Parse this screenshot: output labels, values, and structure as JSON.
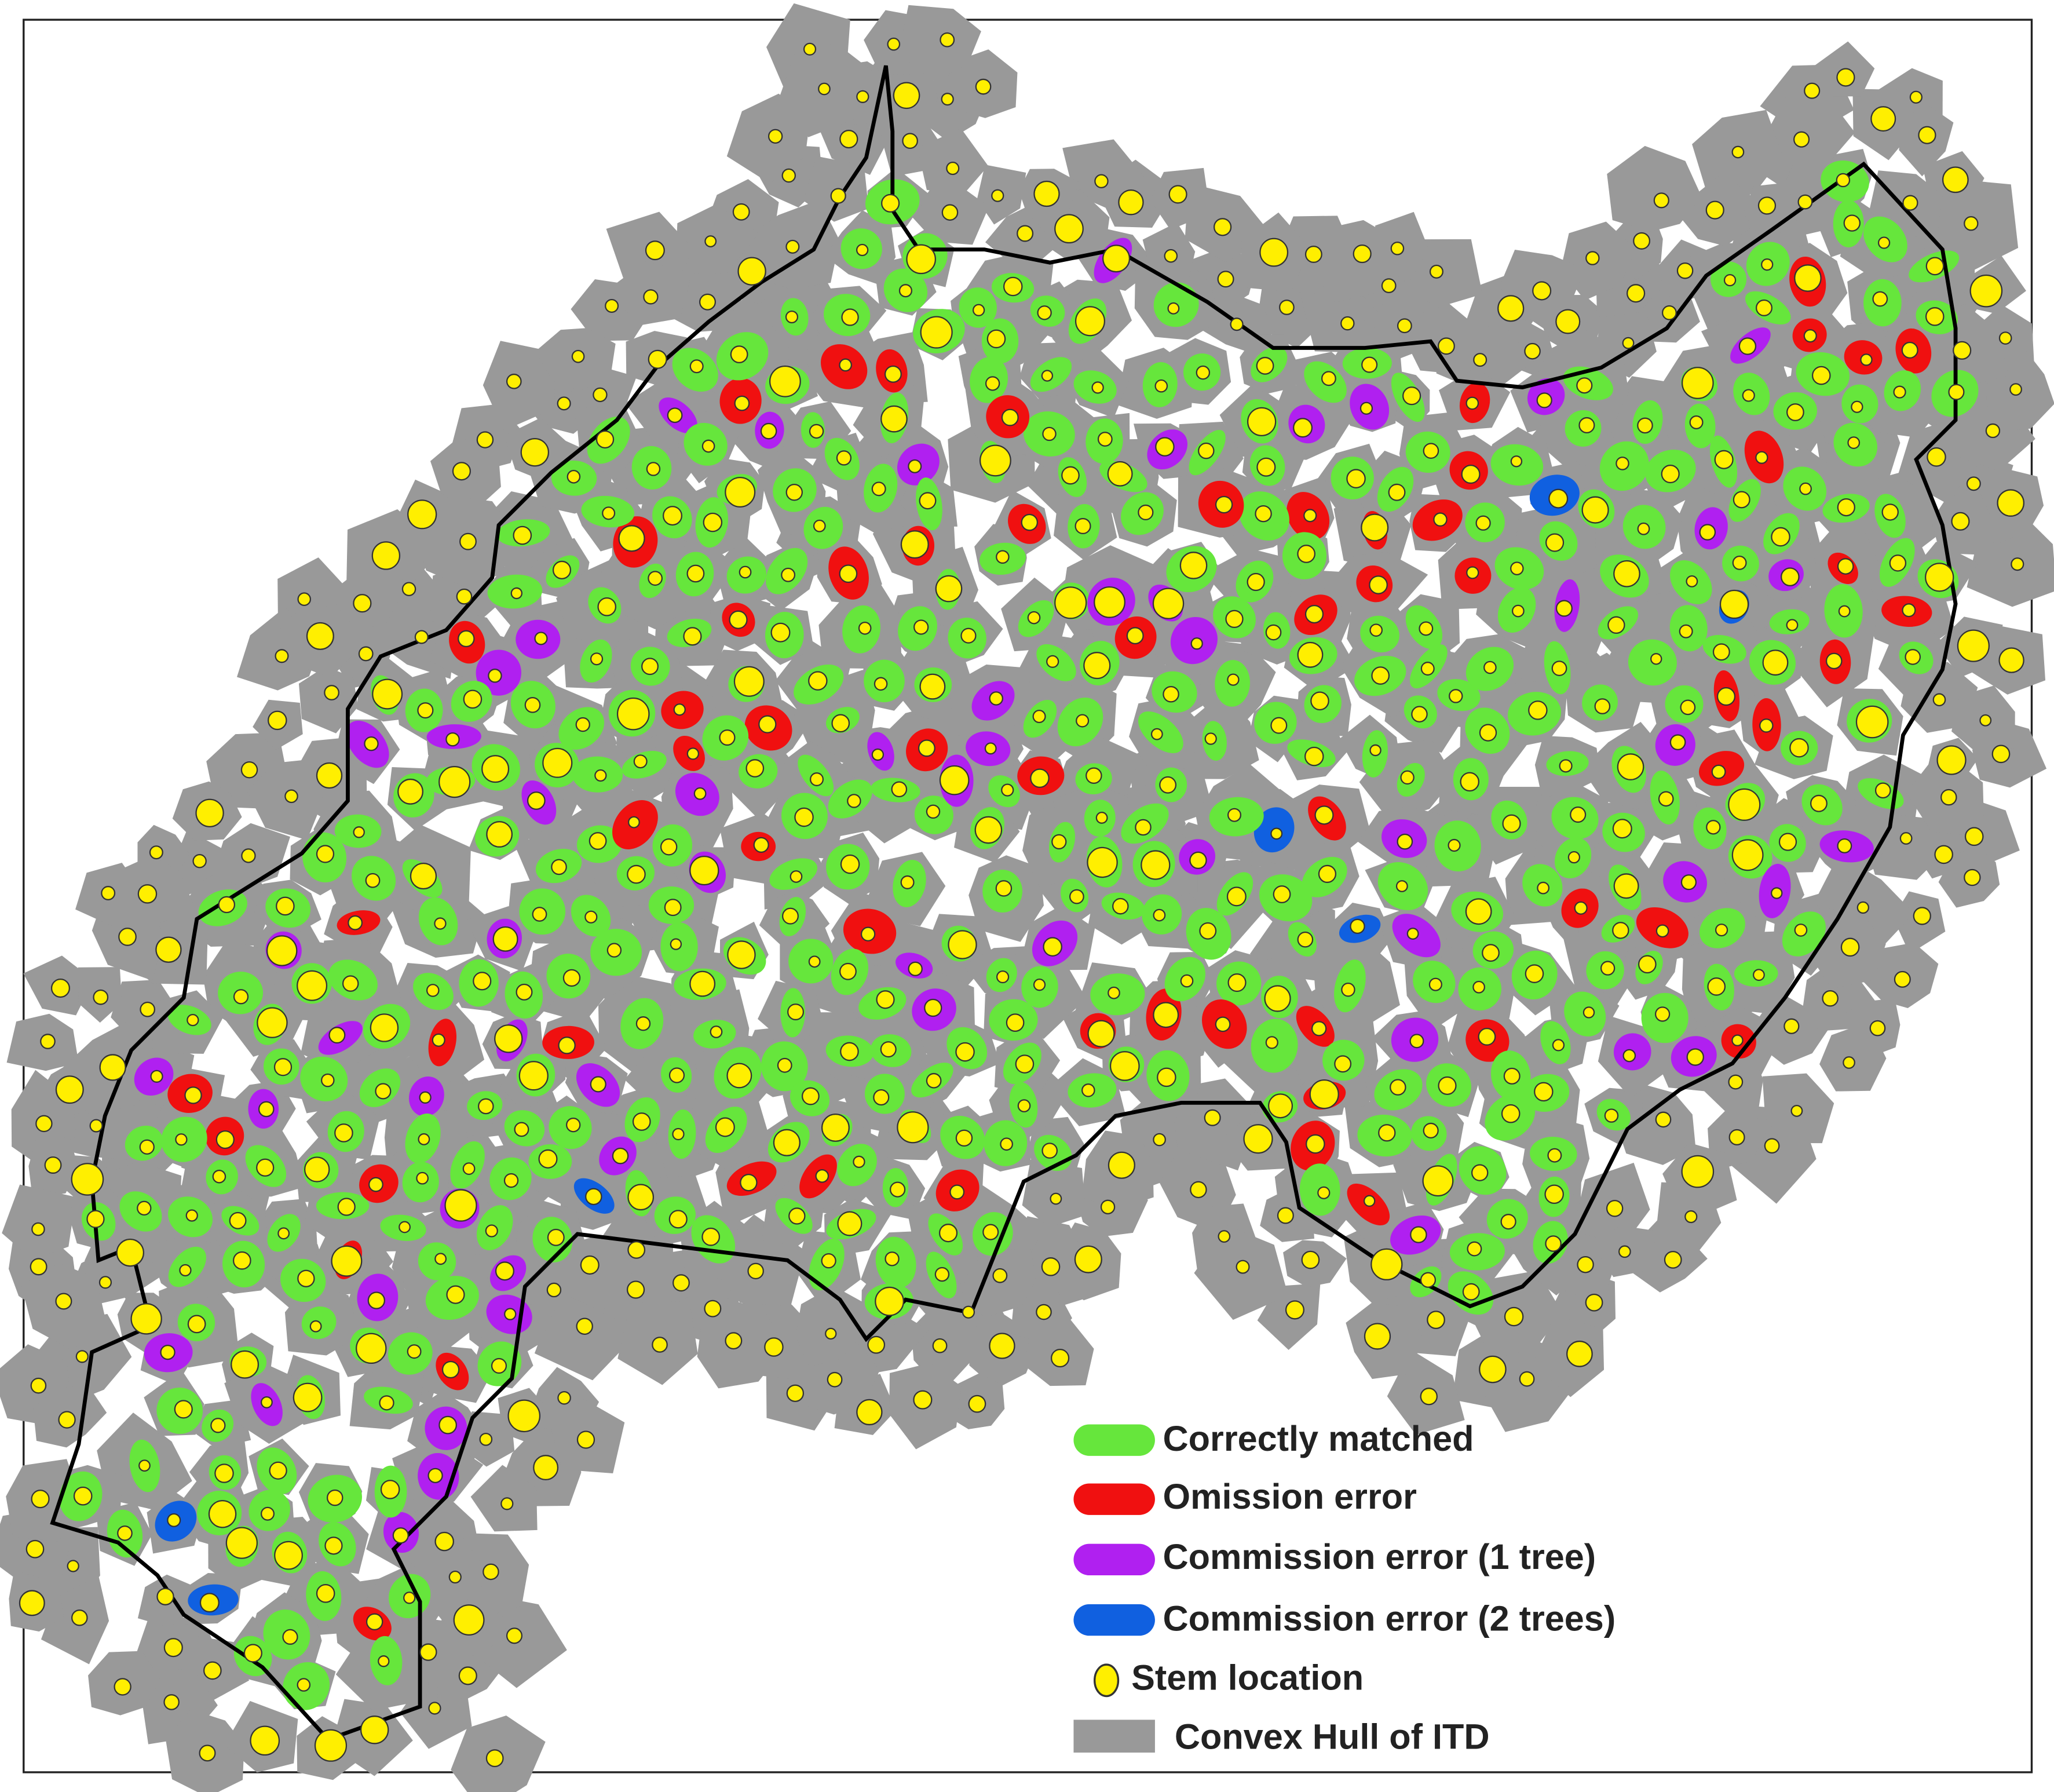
{
  "legend": [
    "Correctly matched",
    "Omission error",
    "Commission error (1 tree)",
    "Commission error (2 trees)",
    "Stem location",
    "Convex Hull of ITD"
  ]
}
